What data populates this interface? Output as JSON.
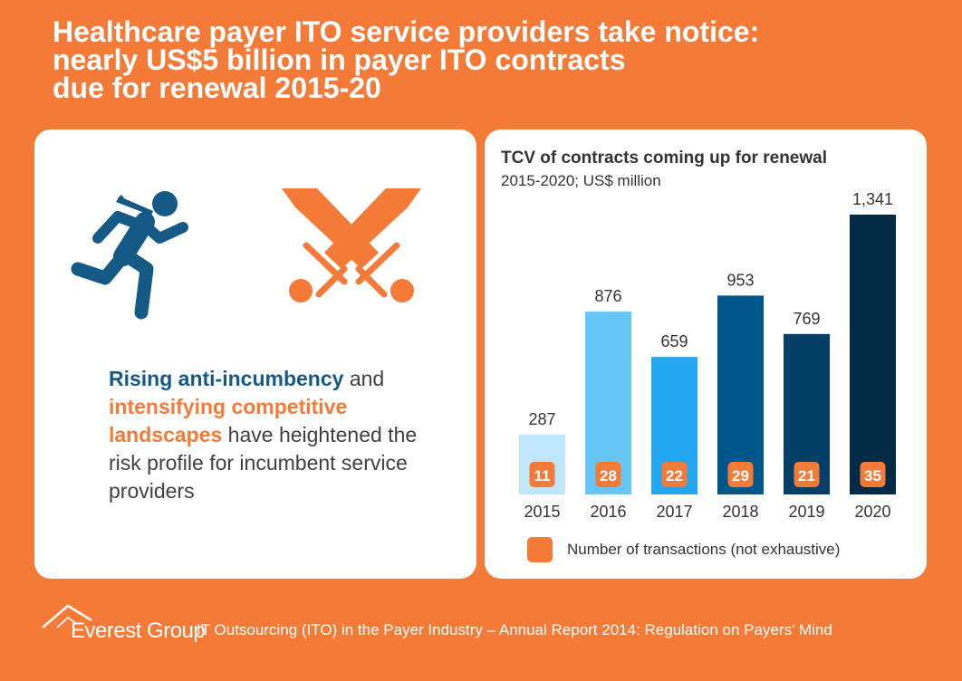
{
  "header": {
    "title_lines": [
      "Healthcare payer ITO service providers take notice:",
      "nearly US$5 billion in payer ITO contracts",
      "due for renewal 2015-20"
    ]
  },
  "left_panel": {
    "icons": [
      "running-person-icon",
      "crossed-swords-icon"
    ],
    "desc": {
      "part1": "Rising anti-incumbency",
      "part2": " and ",
      "part3": "intensifying competitive landscapes",
      "part4": " have heightened the risk profile for incumbent service providers"
    }
  },
  "chart": {
    "legend_label": "Number of transactions (not exhaustive)"
  },
  "colors": {
    "background": "#f47a38",
    "accent": "#f47a38",
    "text_blue": "#155a87"
  },
  "chart_data": {
    "type": "bar",
    "title": "TCV of contracts coming up for renewal",
    "subtitle": "2015-2020; US$ million",
    "categories": [
      "2015",
      "2016",
      "2017",
      "2018",
      "2019",
      "2020"
    ],
    "values": [
      287,
      876,
      659,
      953,
      769,
      1341
    ],
    "value_labels": [
      "287",
      "876",
      "659",
      "953",
      "769",
      "1,341"
    ],
    "transactions": [
      11,
      28,
      22,
      29,
      21,
      35
    ],
    "bar_colors": [
      "#bfe6fb",
      "#66c7f7",
      "#23a7f0",
      "#01568b",
      "#033f66",
      "#022a45"
    ],
    "ylim": [
      0,
      1341
    ],
    "legend": [
      "Number of transactions (not exhaustive)"
    ]
  },
  "footer": {
    "logo": "Everest Group",
    "text": "IT Outsourcing (ITO) in the Payer Industry – Annual Report 2014: Regulation on Payers’ Mind"
  }
}
